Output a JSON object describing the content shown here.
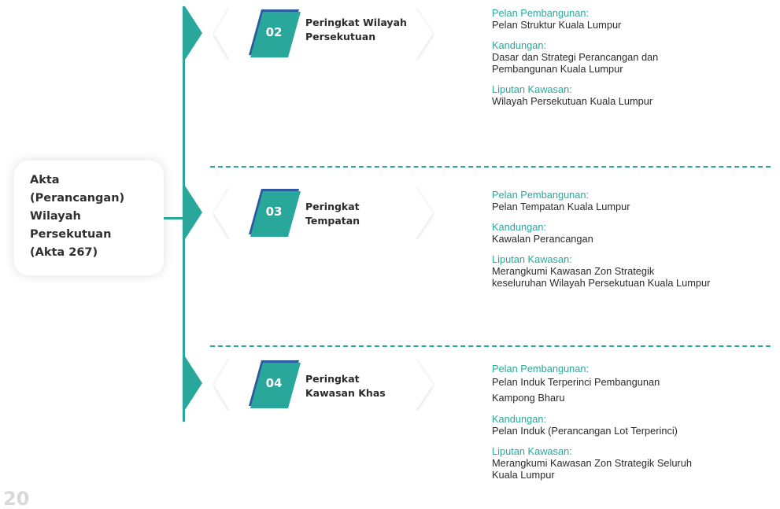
{
  "act": {
    "lines": [
      "Akta",
      "(Perancangan)",
      "Wilayah",
      "Persekutuan",
      "(Akta 267)"
    ]
  },
  "levels": [
    {
      "number": "02",
      "title": [
        "Peringkat Wilayah",
        "Persekutuan"
      ],
      "info": [
        {
          "label": "Pelan Pembangunan:",
          "value": [
            "Pelan Struktur Kuala Lumpur"
          ]
        },
        {
          "label": "Kandungan:",
          "value": [
            "Dasar dan Strategi Perancangan dan",
            "Pembangunan Kuala Lumpur"
          ]
        },
        {
          "label": "Liputan Kawasan:",
          "value": [
            "Wilayah Persekutuan Kuala Lumpur"
          ]
        }
      ]
    },
    {
      "number": "03",
      "title": [
        "Peringkat",
        "Tempatan"
      ],
      "info": [
        {
          "label": "Pelan Pembangunan:",
          "value": [
            "Pelan Tempatan Kuala Lumpur"
          ]
        },
        {
          "label": "Kandungan:",
          "value": [
            "Kawalan Perancangan"
          ]
        },
        {
          "label": "Liputan Kawasan:",
          "value": [
            "Merangkumi Kawasan Zon Strategik",
            "keseluruhan Wilayah Persekutuan Kuala Lumpur"
          ]
        }
      ]
    },
    {
      "number": "04",
      "title": [
        "Peringkat",
        "Kawasan Khas"
      ],
      "info": [
        {
          "label": "Pelan Pembangunan:",
          "value": [
            "Pelan Induk Terperinci Pembangunan",
            "Kampong Bharu"
          ]
        },
        {
          "label": "Kandungan:",
          "value": [
            "Pelan Induk (Perancangan Lot Terperinci)"
          ]
        },
        {
          "label": "Liputan Kawasan:",
          "value": [
            "Merangkumi Kawasan Zon Strategik Seluruh",
            "Kuala Lumpur"
          ]
        }
      ]
    }
  ],
  "page_number": "20",
  "colors": {
    "accent": "#2aa79b",
    "accent_dark": "#2c5aa0",
    "text": "#2b2b2b"
  }
}
